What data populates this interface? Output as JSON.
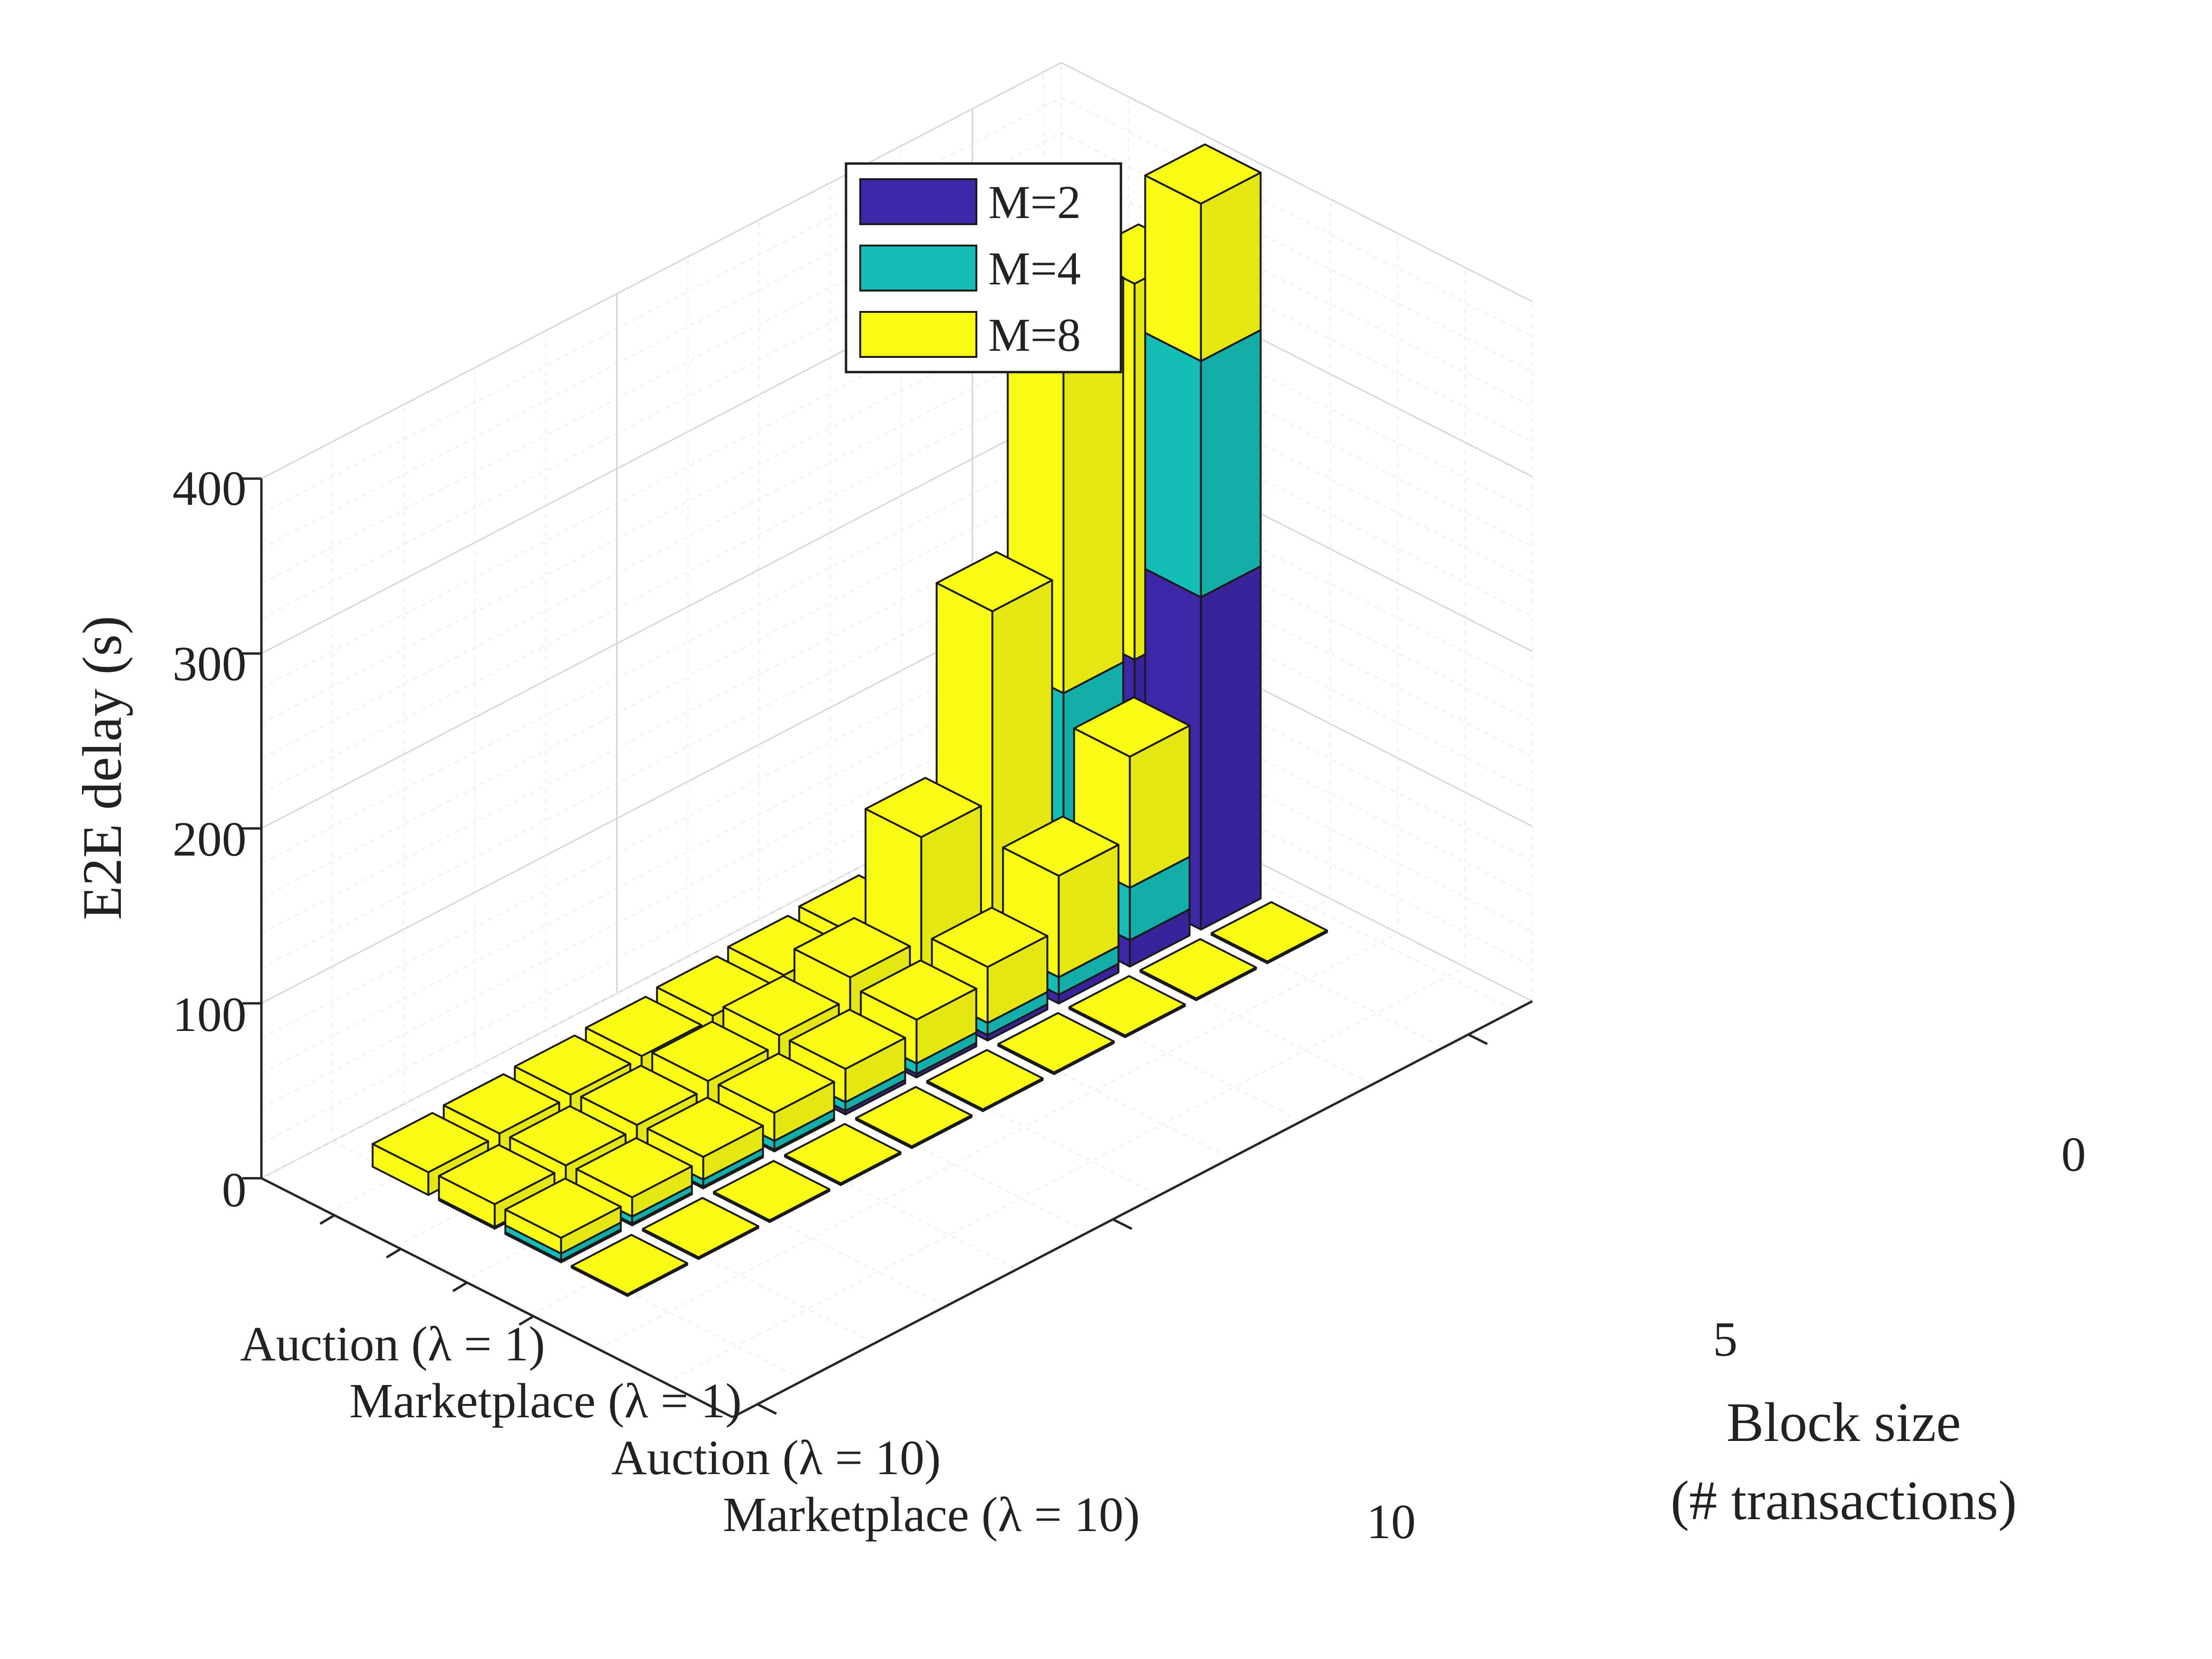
{
  "colors": {
    "m2": "#3e26a8",
    "m4": "#14bdb6",
    "m8": "#f9fb15",
    "edge": "#1a1a1a",
    "grid": "#d6d6d6",
    "axis": "#262626"
  },
  "chart_data": {
    "type": "bar3-stacked",
    "title": "",
    "zlabel": "E2E delay (s)",
    "ylabel_lines": [
      "Block size",
      "(# transactions)"
    ],
    "zlim": [
      0,
      400
    ],
    "z_ticks": [
      "0",
      "100",
      "200",
      "300",
      "400"
    ],
    "y_ticks": [
      "0",
      "5",
      "10"
    ],
    "grid": true,
    "legend_placement": "top-left",
    "categories": [
      "Auction (λ = 1)",
      "Marketplace (λ = 1)",
      "Auction (λ = 10)",
      "Marketplace (λ = 10)"
    ],
    "block_sizes": [
      1,
      2,
      3,
      4,
      5,
      6,
      7,
      8,
      9,
      10
    ],
    "series": [
      {
        "name": "M=2",
        "values": [
          [
            0,
            0,
            0,
            0,
            0,
            0,
            0,
            0,
            0,
            0
          ],
          [
            135,
            12,
            0,
            0,
            0,
            0,
            0,
            0,
            0,
            0
          ],
          [
            190,
            15,
            5,
            3,
            2,
            2,
            1,
            1,
            1,
            1
          ],
          [
            0,
            0,
            0,
            0,
            0,
            0,
            0,
            0,
            0,
            0
          ]
        ]
      },
      {
        "name": "M=4",
        "values": [
          [
            0,
            0,
            0,
            0,
            0,
            0,
            0,
            0,
            0,
            0
          ],
          [
            0,
            125,
            30,
            2,
            1,
            1,
            1,
            1,
            1,
            1
          ],
          [
            135,
            30,
            10,
            7,
            6,
            5,
            5,
            4,
            4,
            4
          ],
          [
            0,
            0,
            0,
            0,
            0,
            0,
            0,
            0,
            0,
            0
          ]
        ]
      },
      {
        "name": "M=8",
        "values": [
          [
            32,
            28,
            25,
            22,
            20,
            18,
            16,
            15,
            14,
            13
          ],
          [
            215,
            220,
            175,
            95,
            37,
            25,
            20,
            16,
            14,
            13
          ],
          [
            90,
            75,
            58,
            32,
            25,
            19,
            16,
            13,
            11,
            9
          ],
          [
            1,
            1,
            1,
            1,
            1,
            1,
            1,
            1,
            1,
            1
          ]
        ]
      }
    ]
  }
}
